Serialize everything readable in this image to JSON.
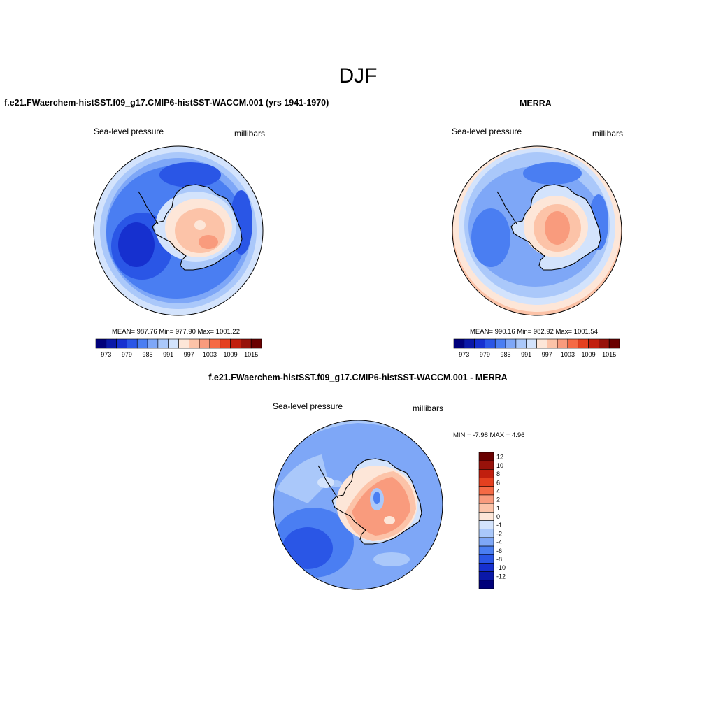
{
  "page": {
    "title": "DJF"
  },
  "panels": [
    {
      "id": "model",
      "title": "f.e21.FWaerchem-histSST.f09_g17.CMIP6-histSST-WACCM.001 (yrs 1941-1970)",
      "left_label": "Sea-level pressure",
      "right_label": "millibars",
      "stats": "MEAN= 987.76  Min= 977.90  Max= 1001.22"
    },
    {
      "id": "obs",
      "title": "MERRA",
      "left_label": "Sea-level pressure",
      "right_label": "millibars",
      "stats": "MEAN= 990.16  Min= 982.92  Max= 1001.54"
    },
    {
      "id": "diff",
      "title": "f.e21.FWaerchem-histSST.f09_g17.CMIP6-histSST-WACCM.001 - MERRA",
      "left_label": "Sea-level pressure",
      "right_label": "millibars",
      "stats": "MIN =  -7.98 MAX =   4.96"
    }
  ],
  "chart_data": [
    {
      "type": "heatmap",
      "projection": "south-polar-stereographic",
      "title": "f.e21.FWaerchem-histSST.f09_g17.CMIP6-histSST-WACCM.001 (yrs 1941-1970)",
      "variable": "Sea-level pressure",
      "units": "millibars",
      "mean": 987.76,
      "min": 977.9,
      "max": 1001.22,
      "colorbar": {
        "levels": [
          973,
          976,
          979,
          982,
          985,
          988,
          991,
          994,
          997,
          1000,
          1003,
          1006,
          1009,
          1012,
          1015
        ],
        "tick_labels": [
          "973",
          "979",
          "985",
          "991",
          "997",
          "1003",
          "1009",
          "1015"
        ],
        "colors": [
          "#00007a",
          "#0a18a8",
          "#1630cf",
          "#2a56e6",
          "#4a7ef2",
          "#7ea7f7",
          "#aac8fa",
          "#d3e3fc",
          "#fde6d8",
          "#fcc3a8",
          "#f99b7d",
          "#f56a45",
          "#e4401f",
          "#c11f0e",
          "#97120a",
          "#6a0000"
        ]
      }
    },
    {
      "type": "heatmap",
      "projection": "south-polar-stereographic",
      "title": "MERRA",
      "variable": "Sea-level pressure",
      "units": "millibars",
      "mean": 990.16,
      "min": 982.92,
      "max": 1001.54,
      "colorbar": {
        "levels": [
          973,
          976,
          979,
          982,
          985,
          988,
          991,
          994,
          997,
          1000,
          1003,
          1006,
          1009,
          1012,
          1015
        ],
        "tick_labels": [
          "973",
          "979",
          "985",
          "991",
          "997",
          "1003",
          "1009",
          "1015"
        ],
        "colors": [
          "#00007a",
          "#0a18a8",
          "#1630cf",
          "#2a56e6",
          "#4a7ef2",
          "#7ea7f7",
          "#aac8fa",
          "#d3e3fc",
          "#fde6d8",
          "#fcc3a8",
          "#f99b7d",
          "#f56a45",
          "#e4401f",
          "#c11f0e",
          "#97120a",
          "#6a0000"
        ]
      }
    },
    {
      "type": "heatmap",
      "projection": "south-polar-stereographic",
      "title": "f.e21.FWaerchem-histSST.f09_g17.CMIP6-histSST-WACCM.001 - MERRA",
      "variable": "Sea-level pressure",
      "units": "millibars",
      "min": -7.98,
      "max": 4.96,
      "colorbar": {
        "orientation": "vertical",
        "levels": [
          -12,
          -10,
          -8,
          -6,
          -4,
          -2,
          -1,
          0,
          1,
          2,
          4,
          6,
          8,
          10,
          12
        ],
        "tick_labels": [
          "12",
          "10",
          "8",
          "6",
          "4",
          "2",
          "1",
          "0",
          "-1",
          "-2",
          "-4",
          "-6",
          "-8",
          "-10",
          "-12"
        ],
        "colors": [
          "#00007a",
          "#0a18a8",
          "#1630cf",
          "#2a56e6",
          "#4a7ef2",
          "#7ea7f7",
          "#aac8fa",
          "#d3e3fc",
          "#fde6d8",
          "#fcc3a8",
          "#f99b7d",
          "#f56a45",
          "#e4401f",
          "#c11f0e",
          "#97120a",
          "#6a0000"
        ]
      }
    }
  ]
}
